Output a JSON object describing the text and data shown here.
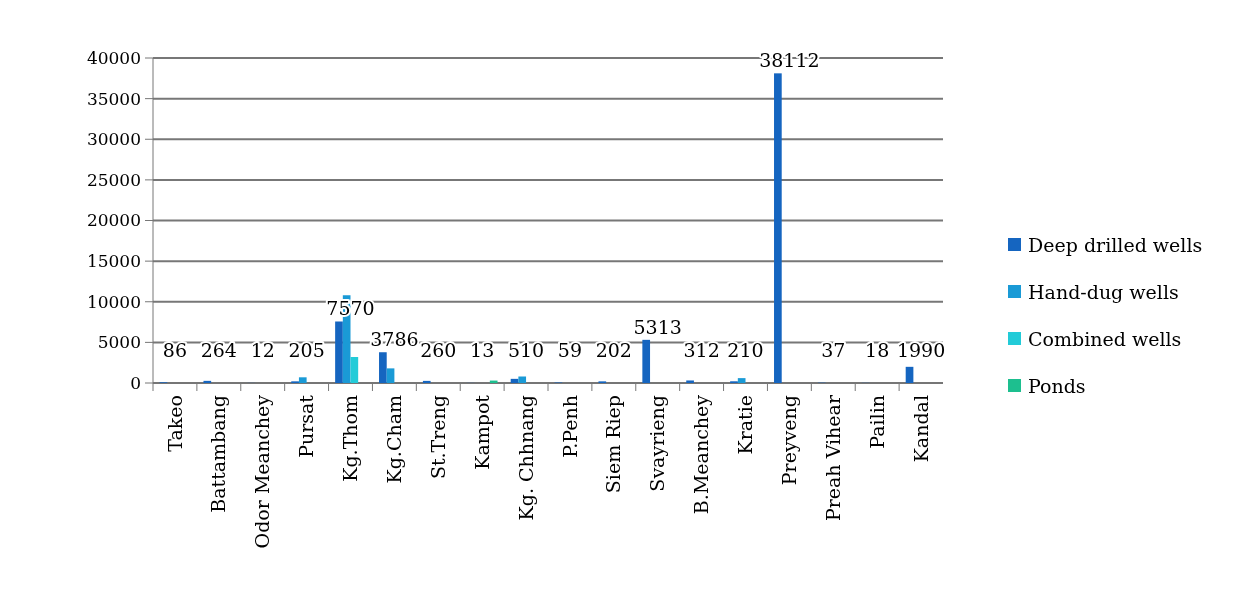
{
  "chart_data": {
    "type": "bar",
    "categories": [
      "Takeo",
      "Battambang",
      "Odor Meanchey",
      "Pursat",
      "Kg.Thom",
      "Kg.Cham",
      "St.Treng",
      "Kampot",
      "Kg. Chhnang",
      "P.Penh",
      "Siem Riep",
      "Svayrieng",
      "B.Meanchey",
      "Kratie",
      "Preyveng",
      "Preah Vihear",
      "Pailin",
      "Kandal"
    ],
    "series": [
      {
        "name": "Deep drilled wells",
        "color": "#1565c0",
        "values": [
          86,
          264,
          12,
          205,
          7570,
          3786,
          260,
          13,
          510,
          59,
          202,
          5313,
          312,
          210,
          38112,
          37,
          18,
          1990
        ],
        "value_labels": [
          "86",
          "264",
          "12",
          "205",
          "7570",
          "3786",
          "260",
          "13",
          "510",
          "59",
          "202",
          "5313",
          "312",
          "210",
          "38112",
          "37",
          "18",
          "1990"
        ]
      },
      {
        "name": "Hand-dug wells",
        "color": "#1a9ad6",
        "values": [
          0,
          0,
          0,
          700,
          10800,
          1800,
          0,
          0,
          800,
          0,
          0,
          0,
          0,
          600,
          0,
          0,
          0,
          0
        ]
      },
      {
        "name": "Combined wells",
        "color": "#22cbd8",
        "values": [
          0,
          0,
          0,
          0,
          3200,
          0,
          0,
          0,
          0,
          0,
          0,
          0,
          0,
          0,
          0,
          0,
          0,
          0
        ]
      },
      {
        "name": "Ponds",
        "color": "#1dbf8f",
        "values": [
          0,
          0,
          0,
          0,
          0,
          0,
          0,
          300,
          0,
          0,
          0,
          0,
          0,
          0,
          0,
          0,
          0,
          0
        ]
      }
    ],
    "ylim": [
      0,
      40000
    ],
    "yticks": [
      0,
      5000,
      10000,
      15000,
      20000,
      25000,
      30000,
      35000,
      40000
    ],
    "grid": "y",
    "legend": "right"
  }
}
